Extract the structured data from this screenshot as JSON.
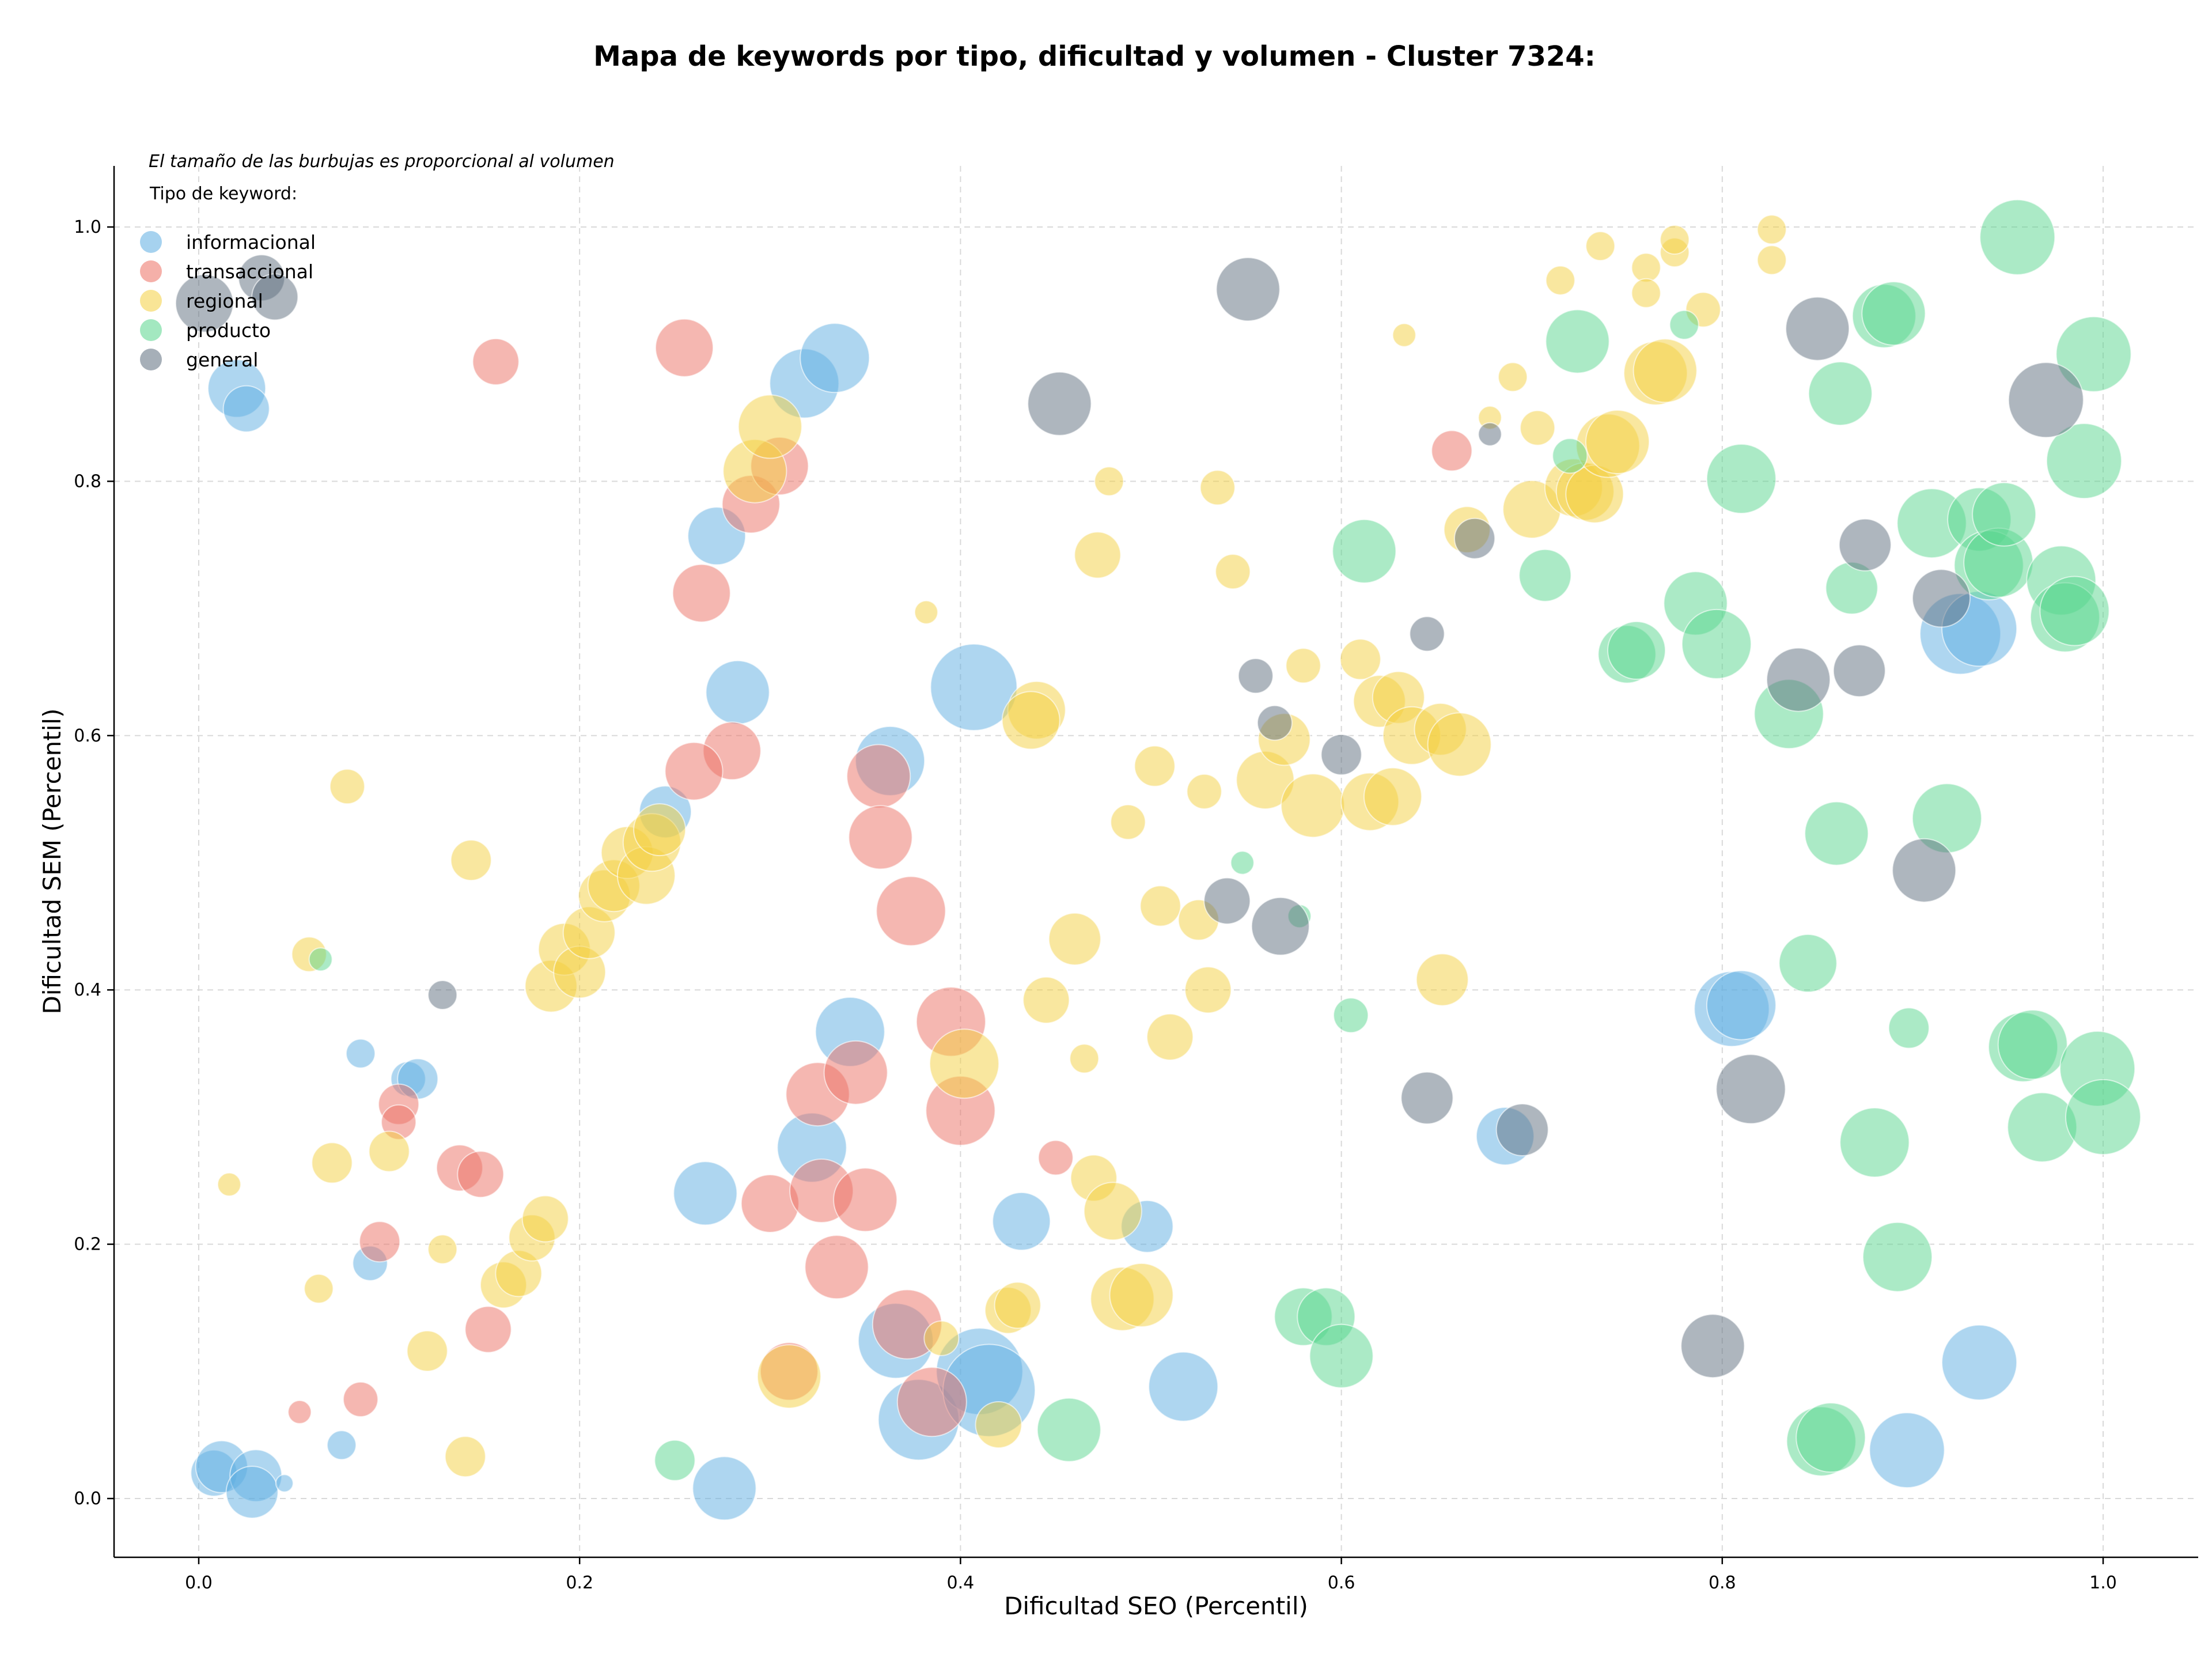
{
  "chart_data": {
    "type": "scatter",
    "title": "Mapa de keywords por tipo, dificultad y volumen - Cluster 7324:",
    "xlabel": "Dificultad SEO (Percentil)",
    "ylabel": "Dificultad SEM (Percentil)",
    "xlim": [
      -0.045,
      1.05
    ],
    "ylim": [
      -0.045,
      1.05
    ],
    "xticks": [
      0.0,
      0.2,
      0.4,
      0.6,
      0.8,
      1.0
    ],
    "yticks": [
      0.0,
      0.2,
      0.4,
      0.6,
      0.8,
      1.0
    ],
    "xtick_labels": [
      "0.0",
      "0.2",
      "0.4",
      "0.6",
      "0.8",
      "1.0"
    ],
    "ytick_labels": [
      "0.0",
      "0.2",
      "0.4",
      "0.6",
      "0.8",
      "1.0"
    ],
    "grid": true,
    "legend_position": "top-left",
    "legend_note": "El tamaño de las burbujas es proporcional al volumen",
    "legend_title": "Tipo de keyword:",
    "bubble_size": "proportional to volume",
    "series": [
      {
        "name": "informacional",
        "color": "#5DADE2",
        "points": [
          [
            0.02,
            0.873,
            1.0
          ],
          [
            0.025,
            0.857,
            0.8
          ],
          [
            0.008,
            0.02,
            0.8
          ],
          [
            0.012,
            0.025,
            0.9
          ],
          [
            0.03,
            0.018,
            0.9
          ],
          [
            0.028,
            0.005,
            0.9
          ],
          [
            0.045,
            0.012,
            0.3
          ],
          [
            0.075,
            0.042,
            0.5
          ],
          [
            0.085,
            0.35,
            0.5
          ],
          [
            0.09,
            0.185,
            0.6
          ],
          [
            0.11,
            0.33,
            0.6
          ],
          [
            0.115,
            0.33,
            0.7
          ],
          [
            0.245,
            0.54,
            0.9
          ],
          [
            0.272,
            0.757,
            1.0
          ],
          [
            0.283,
            0.634,
            1.1
          ],
          [
            0.266,
            0.24,
            1.1
          ],
          [
            0.276,
            0.008,
            1.1
          ],
          [
            0.318,
            0.877,
            1.2
          ],
          [
            0.334,
            0.897,
            1.2
          ],
          [
            0.363,
            0.58,
            1.2
          ],
          [
            0.342,
            0.367,
            1.2
          ],
          [
            0.322,
            0.276,
            1.2
          ],
          [
            0.366,
            0.124,
            1.3
          ],
          [
            0.378,
            0.062,
            1.4
          ],
          [
            0.407,
            0.638,
            1.5
          ],
          [
            0.41,
            0.1,
            1.5
          ],
          [
            0.415,
            0.085,
            1.6
          ],
          [
            0.432,
            0.218,
            1.0
          ],
          [
            0.498,
            0.214,
            0.9
          ],
          [
            0.517,
            0.088,
            1.2
          ],
          [
            0.686,
            0.285,
            1.0
          ],
          [
            0.805,
            0.385,
            1.3
          ],
          [
            0.81,
            0.388,
            1.2
          ],
          [
            0.925,
            0.68,
            1.4
          ],
          [
            0.935,
            0.684,
            1.3
          ],
          [
            0.935,
            0.107,
            1.3
          ],
          [
            0.897,
            0.038,
            1.3
          ]
        ]
      },
      {
        "name": "transaccional",
        "color": "#EC7063",
        "points": [
          [
            0.053,
            0.068,
            0.4
          ],
          [
            0.085,
            0.078,
            0.6
          ],
          [
            0.095,
            0.202,
            0.7
          ],
          [
            0.105,
            0.31,
            0.7
          ],
          [
            0.105,
            0.296,
            0.6
          ],
          [
            0.137,
            0.26,
            0.8
          ],
          [
            0.148,
            0.255,
            0.8
          ],
          [
            0.152,
            0.133,
            0.8
          ],
          [
            0.156,
            0.894,
            0.8
          ],
          [
            0.255,
            0.905,
            1.0
          ],
          [
            0.264,
            0.712,
            1.0
          ],
          [
            0.28,
            0.588,
            1.0
          ],
          [
            0.26,
            0.572,
            1.0
          ],
          [
            0.29,
            0.782,
            1.0
          ],
          [
            0.305,
            0.812,
            1.0
          ],
          [
            0.3,
            0.232,
            1.0
          ],
          [
            0.31,
            0.1,
            1.0
          ],
          [
            0.325,
            0.318,
            1.1
          ],
          [
            0.327,
            0.242,
            1.1
          ],
          [
            0.335,
            0.182,
            1.1
          ],
          [
            0.345,
            0.335,
            1.1
          ],
          [
            0.35,
            0.235,
            1.1
          ],
          [
            0.357,
            0.568,
            1.1
          ],
          [
            0.358,
            0.52,
            1.1
          ],
          [
            0.374,
            0.462,
            1.2
          ],
          [
            0.372,
            0.137,
            1.2
          ],
          [
            0.385,
            0.076,
            1.2
          ],
          [
            0.395,
            0.375,
            1.2
          ],
          [
            0.4,
            0.305,
            1.2
          ],
          [
            0.45,
            0.268,
            0.6
          ],
          [
            0.658,
            0.824,
            0.7
          ]
        ]
      },
      {
        "name": "regional",
        "color": "#F4D03F",
        "points": [
          [
            0.016,
            0.247,
            0.4
          ],
          [
            0.058,
            0.428,
            0.6
          ],
          [
            0.063,
            0.165,
            0.5
          ],
          [
            0.07,
            0.264,
            0.7
          ],
          [
            0.078,
            0.56,
            0.6
          ],
          [
            0.1,
            0.273,
            0.7
          ],
          [
            0.12,
            0.116,
            0.7
          ],
          [
            0.128,
            0.196,
            0.5
          ],
          [
            0.14,
            0.033,
            0.7
          ],
          [
            0.143,
            0.502,
            0.7
          ],
          [
            0.16,
            0.168,
            0.8
          ],
          [
            0.168,
            0.177,
            0.8
          ],
          [
            0.175,
            0.205,
            0.8
          ],
          [
            0.182,
            0.22,
            0.8
          ],
          [
            0.185,
            0.403,
            0.9
          ],
          [
            0.192,
            0.432,
            0.9
          ],
          [
            0.2,
            0.414,
            0.9
          ],
          [
            0.205,
            0.445,
            0.9
          ],
          [
            0.213,
            0.474,
            0.9
          ],
          [
            0.218,
            0.482,
            0.9
          ],
          [
            0.225,
            0.508,
            0.9
          ],
          [
            0.235,
            0.49,
            1.0
          ],
          [
            0.238,
            0.516,
            1.0
          ],
          [
            0.242,
            0.526,
            0.9
          ],
          [
            0.292,
            0.808,
            1.1
          ],
          [
            0.3,
            0.843,
            1.1
          ],
          [
            0.31,
            0.096,
            1.1
          ],
          [
            0.382,
            0.697,
            0.4
          ],
          [
            0.39,
            0.126,
            0.6
          ],
          [
            0.402,
            0.342,
            1.2
          ],
          [
            0.42,
            0.058,
            0.8
          ],
          [
            0.425,
            0.148,
            0.8
          ],
          [
            0.43,
            0.152,
            0.8
          ],
          [
            0.44,
            0.62,
            1.0
          ],
          [
            0.437,
            0.612,
            1.0
          ],
          [
            0.445,
            0.392,
            0.8
          ],
          [
            0.46,
            0.44,
            0.9
          ],
          [
            0.465,
            0.346,
            0.5
          ],
          [
            0.47,
            0.252,
            0.8
          ],
          [
            0.472,
            0.742,
            0.8
          ],
          [
            0.478,
            0.8,
            0.5
          ],
          [
            0.48,
            0.226,
            1.0
          ],
          [
            0.485,
            0.157,
            1.1
          ],
          [
            0.495,
            0.16,
            1.1
          ],
          [
            0.488,
            0.532,
            0.6
          ],
          [
            0.502,
            0.576,
            0.7
          ],
          [
            0.505,
            0.466,
            0.7
          ],
          [
            0.51,
            0.363,
            0.8
          ],
          [
            0.525,
            0.455,
            0.7
          ],
          [
            0.528,
            0.556,
            0.6
          ],
          [
            0.53,
            0.4,
            0.8
          ],
          [
            0.535,
            0.795,
            0.6
          ],
          [
            0.543,
            0.729,
            0.6
          ],
          [
            0.56,
            0.565,
            1.0
          ],
          [
            0.57,
            0.597,
            0.9
          ],
          [
            0.58,
            0.655,
            0.6
          ],
          [
            0.585,
            0.545,
            1.1
          ],
          [
            0.61,
            0.66,
            0.7
          ],
          [
            0.615,
            0.548,
            1.0
          ],
          [
            0.62,
            0.627,
            0.9
          ],
          [
            0.627,
            0.552,
            1.0
          ],
          [
            0.63,
            0.63,
            0.9
          ],
          [
            0.633,
            0.915,
            0.4
          ],
          [
            0.637,
            0.6,
            1.0
          ],
          [
            0.652,
            0.605,
            0.9
          ],
          [
            0.653,
            0.408,
            0.9
          ],
          [
            0.662,
            0.593,
            1.1
          ],
          [
            0.666,
            0.762,
            0.8
          ],
          [
            0.678,
            0.85,
            0.4
          ],
          [
            0.69,
            0.882,
            0.5
          ],
          [
            0.7,
            0.778,
            1.0
          ],
          [
            0.703,
            0.842,
            0.6
          ],
          [
            0.715,
            0.958,
            0.5
          ],
          [
            0.722,
            0.795,
            1.0
          ],
          [
            0.728,
            0.792,
            1.0
          ],
          [
            0.733,
            0.79,
            1.0
          ],
          [
            0.736,
            0.985,
            0.5
          ],
          [
            0.74,
            0.828,
            1.1
          ],
          [
            0.745,
            0.831,
            1.1
          ],
          [
            0.76,
            0.968,
            0.5
          ],
          [
            0.76,
            0.948,
            0.5
          ],
          [
            0.765,
            0.885,
            1.1
          ],
          [
            0.77,
            0.887,
            1.1
          ],
          [
            0.775,
            0.98,
            0.5
          ],
          [
            0.775,
            0.99,
            0.5
          ],
          [
            0.79,
            0.935,
            0.6
          ],
          [
            0.826,
            0.998,
            0.5
          ],
          [
            0.826,
            0.974,
            0.5
          ]
        ]
      },
      {
        "name": "producto",
        "color": "#58D68D",
        "points": [
          [
            0.064,
            0.424,
            0.4
          ],
          [
            0.25,
            0.03,
            0.7
          ],
          [
            0.457,
            0.054,
            1.1
          ],
          [
            0.548,
            0.5,
            0.4
          ],
          [
            0.578,
            0.458,
            0.4
          ],
          [
            0.58,
            0.143,
            1.0
          ],
          [
            0.592,
            0.143,
            1.0
          ],
          [
            0.6,
            0.112,
            1.1
          ],
          [
            0.605,
            0.38,
            0.6
          ],
          [
            0.612,
            0.745,
            1.1
          ],
          [
            0.707,
            0.726,
            0.9
          ],
          [
            0.72,
            0.82,
            0.6
          ],
          [
            0.724,
            0.91,
            1.1
          ],
          [
            0.75,
            0.664,
            1.0
          ],
          [
            0.755,
            0.667,
            1.0
          ],
          [
            0.78,
            0.923,
            0.5
          ],
          [
            0.786,
            0.704,
            1.1
          ],
          [
            0.797,
            0.672,
            1.2
          ],
          [
            0.81,
            0.802,
            1.2
          ],
          [
            0.835,
            0.617,
            1.2
          ],
          [
            0.845,
            0.421,
            1.0
          ],
          [
            0.852,
            0.045,
            1.2
          ],
          [
            0.857,
            0.048,
            1.2
          ],
          [
            0.86,
            0.523,
            1.1
          ],
          [
            0.862,
            0.869,
            1.1
          ],
          [
            0.868,
            0.716,
            0.9
          ],
          [
            0.88,
            0.28,
            1.2
          ],
          [
            0.885,
            0.93,
            1.1
          ],
          [
            0.89,
            0.932,
            1.1
          ],
          [
            0.892,
            0.19,
            1.2
          ],
          [
            0.898,
            0.37,
            0.7
          ],
          [
            0.91,
            0.767,
            1.2
          ],
          [
            0.918,
            0.535,
            1.2
          ],
          [
            0.935,
            0.77,
            1.1
          ],
          [
            0.94,
            0.734,
            1.2
          ],
          [
            0.945,
            0.736,
            1.2
          ],
          [
            0.948,
            0.774,
            1.1
          ],
          [
            0.958,
            0.355,
            1.2
          ],
          [
            0.963,
            0.357,
            1.2
          ],
          [
            0.955,
            0.992,
            1.3
          ],
          [
            0.968,
            0.292,
            1.2
          ],
          [
            0.978,
            0.722,
            1.2
          ],
          [
            0.98,
            0.693,
            1.2
          ],
          [
            0.985,
            0.698,
            1.2
          ],
          [
            0.99,
            0.816,
            1.3
          ],
          [
            0.995,
            0.9,
            1.3
          ],
          [
            0.997,
            0.338,
            1.3
          ],
          [
            1.0,
            0.3,
            1.3
          ]
        ]
      },
      {
        "name": "general",
        "color": "#5D6D7E",
        "points": [
          [
            0.003,
            0.94,
            1.0
          ],
          [
            0.033,
            0.96,
            0.8
          ],
          [
            0.04,
            0.945,
            0.8
          ],
          [
            0.128,
            0.396,
            0.5
          ],
          [
            0.452,
            0.861,
            1.1
          ],
          [
            0.54,
            0.47,
            0.8
          ],
          [
            0.551,
            0.951,
            1.1
          ],
          [
            0.555,
            0.647,
            0.6
          ],
          [
            0.565,
            0.61,
            0.6
          ],
          [
            0.568,
            0.45,
            1.0
          ],
          [
            0.6,
            0.585,
            0.7
          ],
          [
            0.645,
            0.315,
            0.9
          ],
          [
            0.645,
            0.68,
            0.6
          ],
          [
            0.67,
            0.755,
            0.7
          ],
          [
            0.678,
            0.837,
            0.4
          ],
          [
            0.695,
            0.29,
            0.9
          ],
          [
            0.795,
            0.12,
            1.1
          ],
          [
            0.815,
            0.322,
            1.2
          ],
          [
            0.84,
            0.644,
            1.1
          ],
          [
            0.85,
            0.92,
            1.1
          ],
          [
            0.872,
            0.651,
            0.9
          ],
          [
            0.875,
            0.75,
            0.9
          ],
          [
            0.906,
            0.494,
            1.1
          ],
          [
            0.915,
            0.708,
            1.0
          ],
          [
            0.97,
            0.864,
            1.3
          ]
        ]
      }
    ]
  }
}
